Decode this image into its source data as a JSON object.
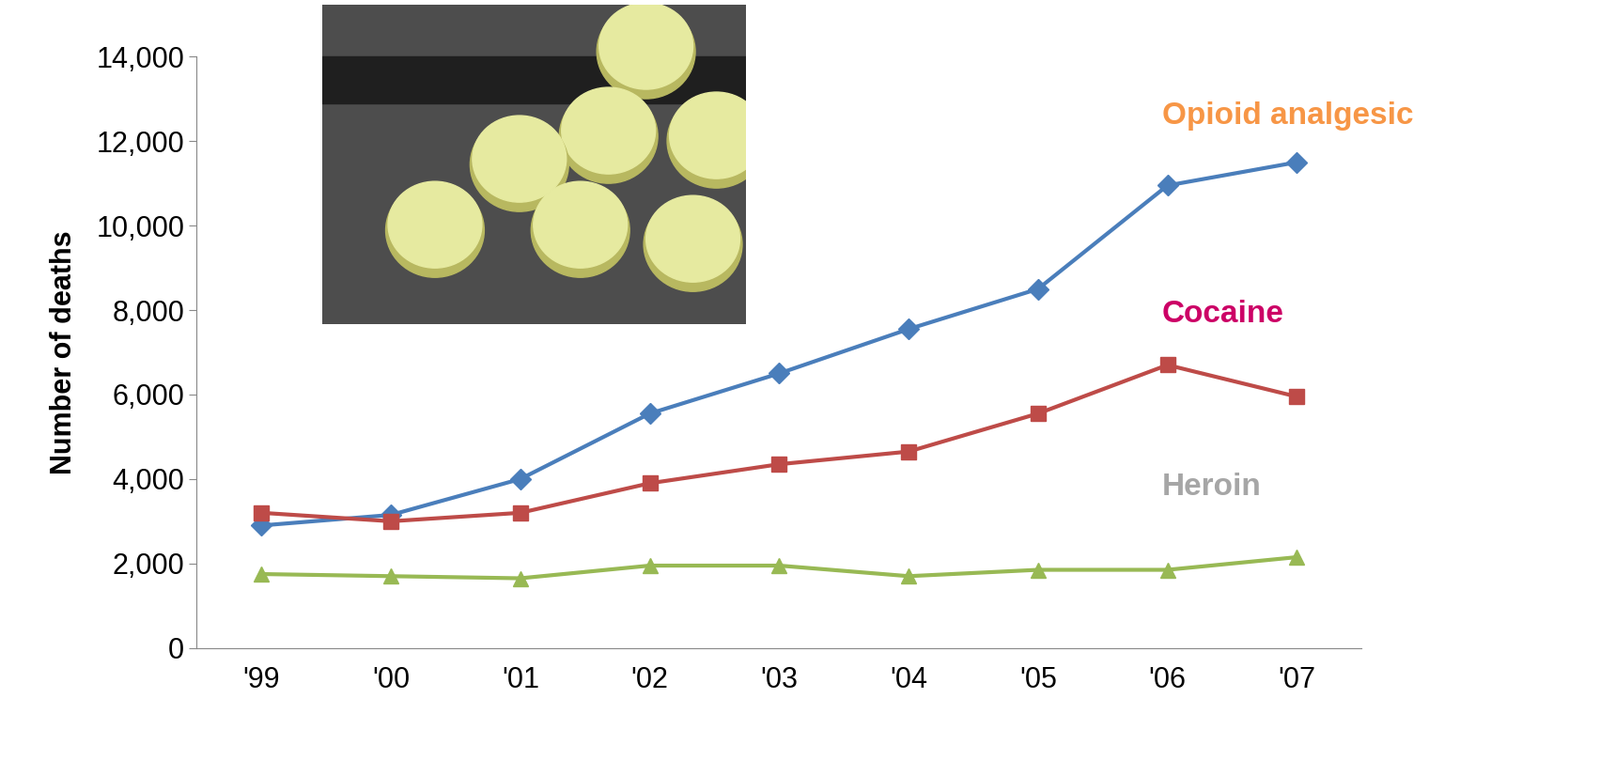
{
  "chart_data": {
    "type": "line",
    "y_label": "Number of deaths",
    "categories": [
      "'99",
      "'00",
      "'01",
      "'02",
      "'03",
      "'04",
      "'05",
      "'06",
      "'07"
    ],
    "series": [
      {
        "name": "Opioid analgesic",
        "color": "#4a7ebb",
        "marker": "diamond",
        "values": [
          2900,
          3150,
          4000,
          5550,
          6500,
          7550,
          8500,
          10950,
          11500
        ]
      },
      {
        "name": "Cocaine",
        "color": "#be4b48",
        "marker": "square",
        "values": [
          3200,
          3000,
          3200,
          3900,
          4350,
          4650,
          5550,
          6700,
          5950
        ]
      },
      {
        "name": "Heroin",
        "color": "#98b954",
        "marker": "triangle",
        "values": [
          1750,
          1700,
          1650,
          1950,
          1950,
          1700,
          1850,
          1850,
          2150
        ]
      }
    ],
    "ylim": [
      0,
      14000
    ],
    "yticks": [
      0,
      {
        "value": 2000,
        "label": "2,000"
      },
      {
        "value": 4000,
        "label": "4,000"
      },
      {
        "value": 6000,
        "label": "6,000"
      },
      {
        "value": 8000,
        "label": "8,000"
      },
      {
        "value": 10000,
        "label": "10,000"
      },
      {
        "value": 12000,
        "label": "12,000"
      },
      {
        "value": 14000,
        "label": "14,000"
      }
    ],
    "grid": false
  }
}
